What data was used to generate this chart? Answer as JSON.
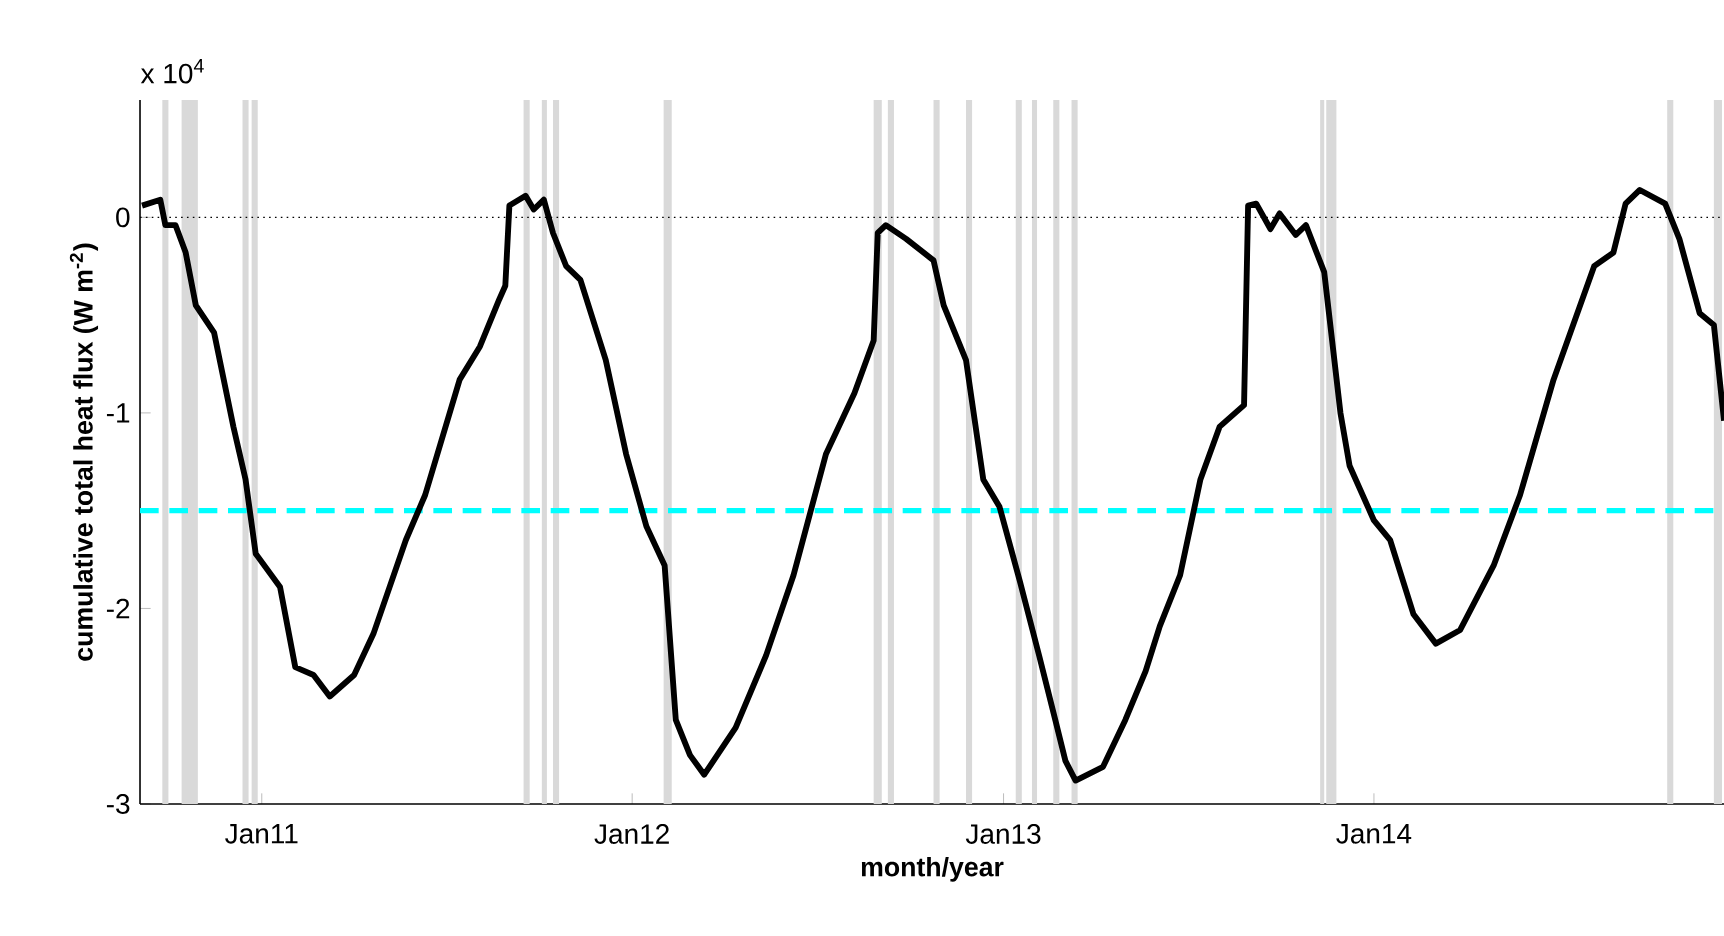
{
  "chart_data": {
    "type": "line",
    "xlabel": "month/year",
    "ylabel": "cumulative total heat flux (W m$^{-2}$)",
    "annotations": [
      "x 10$^{4}$"
    ],
    "xlim": [
      "2010-09-03",
      "2014-12-12"
    ],
    "xticks": [
      {
        "value": "2011-01-01",
        "label": "Jan11"
      },
      {
        "value": "2012-01-01",
        "label": "Jan12"
      },
      {
        "value": "2013-01-01",
        "label": "Jan13"
      },
      {
        "value": "2014-01-01",
        "label": "Jan14"
      }
    ],
    "ylim": [
      -3,
      0.6
    ],
    "yticks": [
      -3,
      -2,
      -1,
      0
    ],
    "series": [
      {
        "color": "#000000",
        "x": [
          "2010-09-05",
          "2010-09-23",
          "2010-09-28",
          "2010-10-08",
          "2010-10-18",
          "2010-10-28",
          "2010-11-15",
          "2010-12-04",
          "2010-12-16",
          "2010-12-26",
          "2011-01-19",
          "2011-02-03",
          "2011-02-21",
          "2011-03-09",
          "2011-04-02",
          "2011-04-21",
          "2011-05-23",
          "2011-06-11",
          "2011-07-15",
          "2011-08-04",
          "2011-08-23",
          "2011-08-29",
          "2011-09-02",
          "2011-09-18",
          "2011-09-26",
          "2011-10-06",
          "2011-10-15",
          "2011-10-28",
          "2011-11-11",
          "2011-12-06",
          "2011-12-26",
          "2012-01-15",
          "2012-02-02",
          "2012-02-13",
          "2012-02-27",
          "2012-03-12",
          "2012-04-12",
          "2012-05-12",
          "2012-06-08",
          "2012-07-10",
          "2012-08-07",
          "2012-08-26",
          "2012-08-30",
          "2012-09-07",
          "2012-09-27",
          "2012-10-24",
          "2012-11-03",
          "2012-11-25",
          "2012-12-12",
          "2012-12-28",
          "2013-01-17",
          "2013-02-05",
          "2013-02-21",
          "2013-03-03",
          "2013-03-13",
          "2013-04-09",
          "2013-05-01",
          "2013-05-21",
          "2013-06-04",
          "2013-06-24",
          "2013-07-14",
          "2013-08-02",
          "2013-08-26",
          "2013-08-30",
          "2013-09-07",
          "2013-09-21",
          "2013-09-30",
          "2013-10-16",
          "2013-10-26",
          "2013-11-13",
          "2013-11-29",
          "2013-12-08",
          "2014-01-01",
          "2014-01-17",
          "2014-02-09",
          "2014-03-03",
          "2014-03-27",
          "2014-04-29",
          "2014-05-25",
          "2014-06-27",
          "2014-08-06",
          "2014-08-25",
          "2014-09-06",
          "2014-09-20",
          "2014-10-15",
          "2014-10-29",
          "2014-11-18",
          "2014-12-02",
          "2014-12-12"
        ],
        "values": [
          0.06,
          0.09,
          -0.04,
          -0.04,
          -0.18,
          -0.45,
          -0.59,
          -1.07,
          -1.34,
          -1.72,
          -1.89,
          -2.3,
          -2.34,
          -2.45,
          -2.34,
          -2.13,
          -1.65,
          -1.42,
          -0.83,
          -0.66,
          -0.42,
          -0.35,
          0.06,
          0.11,
          0.04,
          0.09,
          -0.08,
          -0.25,
          -0.32,
          -0.73,
          -1.21,
          -1.58,
          -1.78,
          -2.57,
          -2.75,
          -2.85,
          -2.61,
          -2.24,
          -1.83,
          -1.21,
          -0.9,
          -0.63,
          -0.08,
          -0.04,
          -0.11,
          -0.22,
          -0.45,
          -0.73,
          -1.34,
          -1.48,
          -1.86,
          -2.24,
          -2.57,
          -2.78,
          -2.88,
          -2.81,
          -2.57,
          -2.32,
          -2.09,
          -1.83,
          -1.34,
          -1.07,
          -0.96,
          0.06,
          0.07,
          -0.06,
          0.02,
          -0.09,
          -0.04,
          -0.28,
          -1.0,
          -1.27,
          -1.55,
          -1.65,
          -2.03,
          -2.18,
          -2.11,
          -1.78,
          -1.42,
          -0.83,
          -0.25,
          -0.18,
          0.07,
          0.14,
          0.07,
          -0.11,
          -0.49,
          -0.55,
          -1.04
        ]
      }
    ],
    "ref_lines": [
      {
        "axis": "y",
        "value": 0,
        "color": "#000000",
        "line_style": "dotted"
      },
      {
        "axis": "y",
        "value": -1.5,
        "color": "#00ffff",
        "line_style": "dashed"
      }
    ],
    "bands": [
      {
        "axis": "x",
        "from": "2010-09-25",
        "to": "2010-10-01",
        "color": "#d9d9d9"
      },
      {
        "axis": "x",
        "from": "2010-10-14",
        "to": "2010-10-30",
        "color": "#d9d9d9"
      },
      {
        "axis": "x",
        "from": "2010-12-13",
        "to": "2010-12-19",
        "color": "#d9d9d9"
      },
      {
        "axis": "x",
        "from": "2010-12-22",
        "to": "2010-12-28",
        "color": "#d9d9d9"
      },
      {
        "axis": "x",
        "from": "2011-09-16",
        "to": "2011-09-22",
        "color": "#d9d9d9"
      },
      {
        "axis": "x",
        "from": "2011-10-04",
        "to": "2011-10-09",
        "color": "#d9d9d9"
      },
      {
        "axis": "x",
        "from": "2011-10-15",
        "to": "2011-10-21",
        "color": "#d9d9d9"
      },
      {
        "axis": "x",
        "from": "2012-02-01",
        "to": "2012-02-09",
        "color": "#d9d9d9"
      },
      {
        "axis": "x",
        "from": "2012-08-26",
        "to": "2012-09-03",
        "color": "#d9d9d9"
      },
      {
        "axis": "x",
        "from": "2012-09-09",
        "to": "2012-09-15",
        "color": "#d9d9d9"
      },
      {
        "axis": "x",
        "from": "2012-10-24",
        "to": "2012-10-30",
        "color": "#d9d9d9"
      },
      {
        "axis": "x",
        "from": "2012-11-25",
        "to": "2012-12-01",
        "color": "#d9d9d9"
      },
      {
        "axis": "x",
        "from": "2013-01-13",
        "to": "2013-01-19",
        "color": "#d9d9d9"
      },
      {
        "axis": "x",
        "from": "2013-01-29",
        "to": "2013-02-03",
        "color": "#d9d9d9"
      },
      {
        "axis": "x",
        "from": "2013-02-19",
        "to": "2013-02-25",
        "color": "#d9d9d9"
      },
      {
        "axis": "x",
        "from": "2013-03-09",
        "to": "2013-03-15",
        "color": "#d9d9d9"
      },
      {
        "axis": "x",
        "from": "2013-11-09",
        "to": "2013-11-13",
        "color": "#d9d9d9"
      },
      {
        "axis": "x",
        "from": "2013-11-15",
        "to": "2013-11-25",
        "color": "#d9d9d9"
      },
      {
        "axis": "x",
        "from": "2014-10-17",
        "to": "2014-10-23",
        "color": "#d9d9d9"
      },
      {
        "axis": "x",
        "from": "2014-12-02",
        "to": "2014-12-10",
        "color": "#d9d9d9"
      }
    ]
  }
}
